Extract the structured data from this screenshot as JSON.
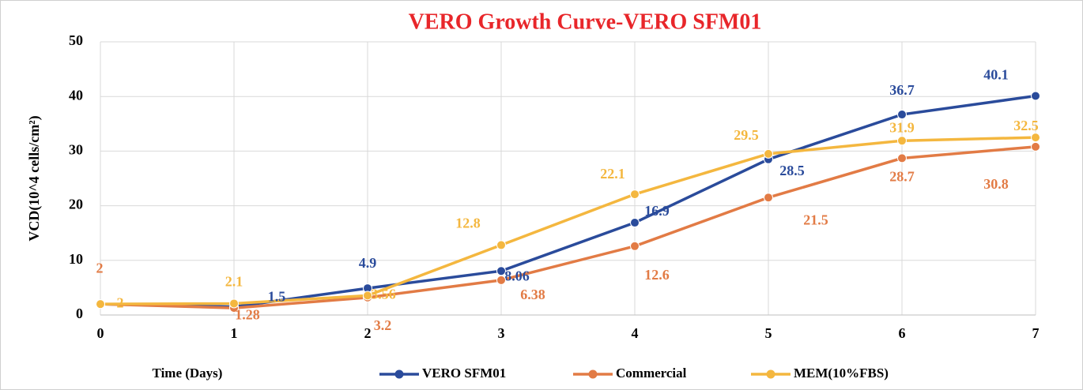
{
  "chart_data": {
    "type": "line",
    "title": "VERO Growth Curve-VERO SFM01",
    "x_label": "Time (Days)",
    "y_label": "VCD(10^4 cells/cm²)",
    "x": [
      0,
      1,
      2,
      3,
      4,
      5,
      6,
      7
    ],
    "xlim": [
      0,
      7
    ],
    "xticks": [
      0,
      1,
      2,
      3,
      4,
      5,
      6,
      7
    ],
    "ylim": [
      0,
      50
    ],
    "yticks": [
      0,
      10,
      20,
      30,
      40,
      50
    ],
    "grid": true,
    "legend": "bottom",
    "series": [
      {
        "name": "VERO SFM01",
        "color": "#2a4b9b",
        "values": [
          2,
          1.5,
          4.9,
          8.06,
          16.9,
          28.5,
          36.7,
          40.1
        ],
        "value_labels": [
          null,
          "1.5",
          "4.9",
          "8.06",
          "16.9",
          "28.5",
          "36.7",
          "40.1"
        ]
      },
      {
        "name": "Commercial",
        "color": "#e27b45",
        "values": [
          2,
          1.28,
          3.2,
          6.38,
          12.6,
          21.5,
          28.7,
          30.8
        ]
      },
      {
        "name": "MEM(10%FBS)",
        "color": "#f4b73f",
        "values": [
          2,
          2.1,
          3.56,
          12.8,
          22.1,
          29.5,
          31.9,
          32.5
        ]
      }
    ]
  }
}
